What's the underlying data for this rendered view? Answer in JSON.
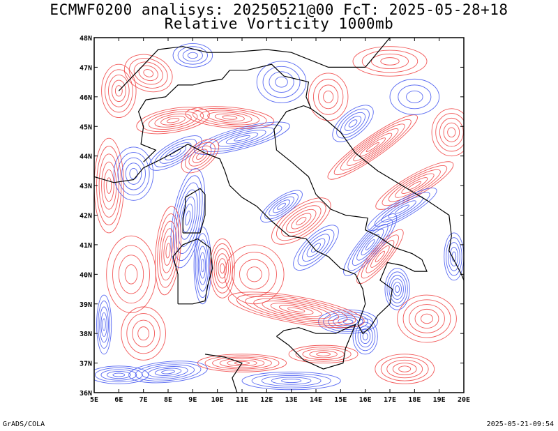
{
  "title_line1": "ECMWF0200 analisys: 20250521@00 FcT: 2025-05-28+18",
  "title_line2": "Relative Vorticity 1000mb",
  "map": {
    "lon_range": [
      5,
      20
    ],
    "lat_range": [
      36,
      48
    ],
    "x_ticks": [
      "5E",
      "6E",
      "7E",
      "8E",
      "9E",
      "10E",
      "11E",
      "12E",
      "13E",
      "14E",
      "15E",
      "16E",
      "17E",
      "18E",
      "19E",
      "20E"
    ],
    "y_ticks": [
      "36N",
      "37N",
      "38N",
      "39N",
      "40N",
      "41N",
      "42N",
      "43N",
      "44N",
      "45N",
      "46N",
      "47N",
      "48N"
    ],
    "colors": {
      "positive_contours": "#f03c3c",
      "negative_contours": "#3c50f0",
      "coastlines": "#000000",
      "frame": "#000000"
    }
  },
  "footer": {
    "left": "GrADS/COLA",
    "right": "2025-05-21-09:54"
  }
}
